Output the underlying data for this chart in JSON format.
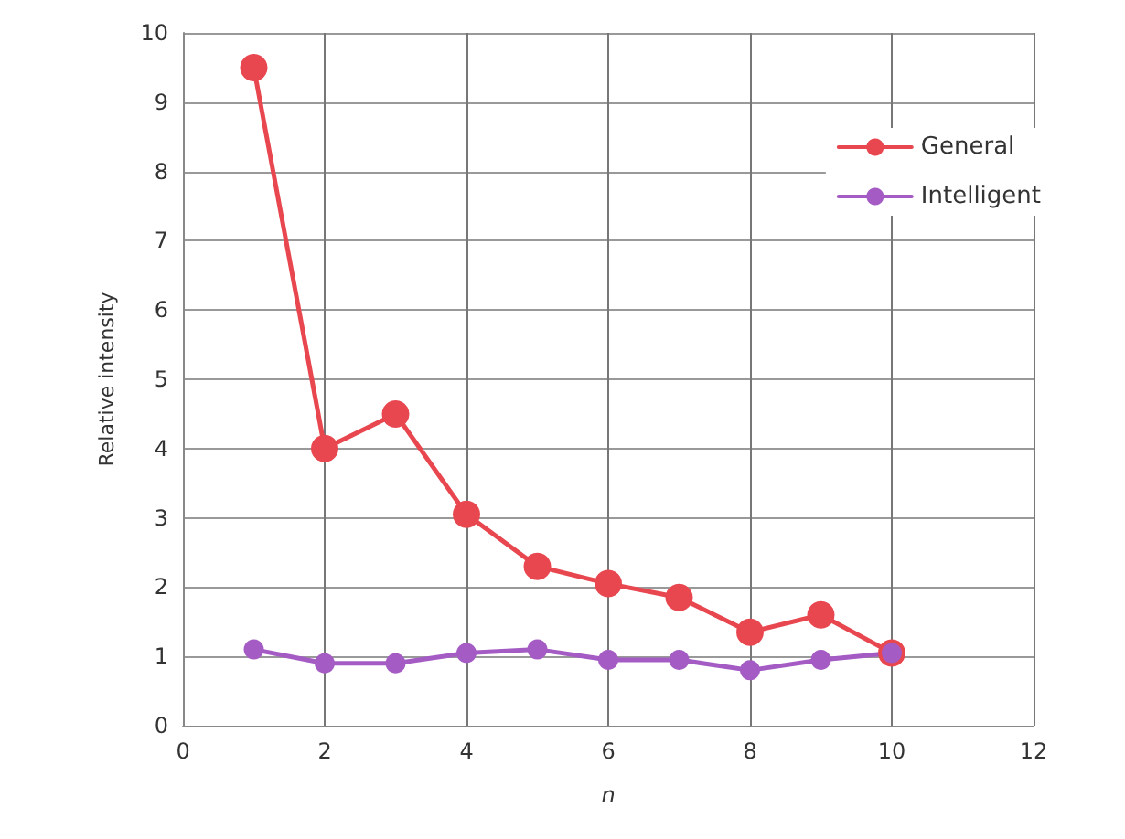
{
  "chart_data": {
    "type": "line",
    "xlabel": "n",
    "ylabel": "Relative intensity",
    "x": [
      1,
      2,
      3,
      4,
      5,
      6,
      7,
      8,
      9,
      10
    ],
    "series": [
      {
        "name": "General",
        "color": "#e8474f",
        "values": [
          9.5,
          4.0,
          4.5,
          3.05,
          2.3,
          2.05,
          1.85,
          1.35,
          1.6,
          1.05
        ]
      },
      {
        "name": "Intelligent",
        "color": "#a45cc4",
        "values": [
          1.1,
          0.9,
          0.9,
          1.05,
          1.1,
          0.95,
          0.95,
          0.8,
          0.95,
          1.05
        ]
      }
    ],
    "xlim": [
      0,
      12
    ],
    "xticks": [
      0,
      2,
      4,
      6,
      8,
      10,
      12
    ],
    "ylim": [
      0,
      10
    ],
    "yticks": [
      0,
      1,
      2,
      3,
      4,
      5,
      6,
      7,
      8,
      9,
      10
    ],
    "grid": true,
    "legend": "top right",
    "marker": "circle",
    "line_style": "solid"
  }
}
